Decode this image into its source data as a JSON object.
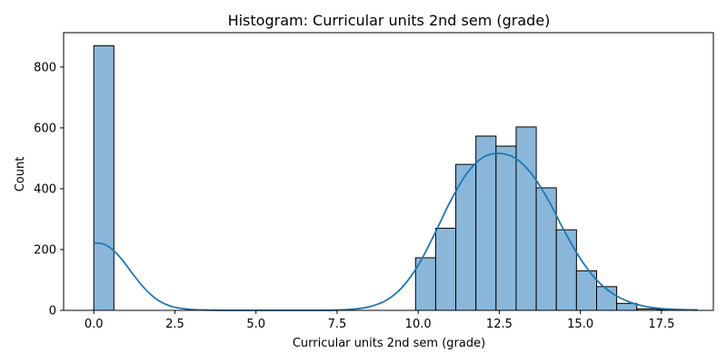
{
  "chart_data": {
    "type": "bar",
    "title": "Histogram: Curricular units 2nd sem (grade)",
    "xlabel": "Curricular units 2nd sem (grade)",
    "ylabel": "Count",
    "xlim": [
      -0.93,
      19.1
    ],
    "ylim": [
      0,
      913
    ],
    "x_ticks": [
      0,
      2.5,
      5,
      7.5,
      10,
      12.5,
      15,
      17.5
    ],
    "x_tick_labels": [
      "0.0",
      "2.5",
      "5.0",
      "7.5",
      "10.0",
      "12.5",
      "15.0",
      "17.5"
    ],
    "y_ticks": [
      0,
      200,
      400,
      600,
      800
    ],
    "y_tick_labels": [
      "0",
      "200",
      "400",
      "600",
      "800"
    ],
    "grid": false,
    "bins": [
      {
        "x0": 0.0,
        "x1": 0.62,
        "count": 870
      },
      {
        "x0": 9.92,
        "x1": 10.54,
        "count": 173
      },
      {
        "x0": 10.54,
        "x1": 11.16,
        "count": 270
      },
      {
        "x0": 11.16,
        "x1": 11.78,
        "count": 480
      },
      {
        "x0": 11.78,
        "x1": 12.4,
        "count": 573
      },
      {
        "x0": 12.4,
        "x1": 13.02,
        "count": 540
      },
      {
        "x0": 13.02,
        "x1": 13.64,
        "count": 603
      },
      {
        "x0": 13.64,
        "x1": 14.26,
        "count": 403
      },
      {
        "x0": 14.26,
        "x1": 14.88,
        "count": 265
      },
      {
        "x0": 14.88,
        "x1": 15.5,
        "count": 130
      },
      {
        "x0": 15.5,
        "x1": 16.12,
        "count": 78
      },
      {
        "x0": 16.12,
        "x1": 16.74,
        "count": 23
      },
      {
        "x0": 16.74,
        "x1": 17.36,
        "count": 5
      },
      {
        "x0": 17.36,
        "x1": 17.98,
        "count": 3
      },
      {
        "x0": 17.98,
        "x1": 18.6,
        "count": 2
      }
    ],
    "kde": [
      [
        0.0,
        222
      ],
      [
        0.3,
        218
      ],
      [
        0.6,
        198
      ],
      [
        0.9,
        163
      ],
      [
        1.2,
        120
      ],
      [
        1.5,
        80
      ],
      [
        1.8,
        48
      ],
      [
        2.1,
        26
      ],
      [
        2.5,
        10
      ],
      [
        3.0,
        3
      ],
      [
        3.5,
        1
      ],
      [
        4.0,
        0
      ],
      [
        5.0,
        0
      ],
      [
        6.0,
        0
      ],
      [
        7.0,
        0
      ],
      [
        7.5,
        1
      ],
      [
        8.0,
        4
      ],
      [
        8.5,
        12
      ],
      [
        9.0,
        32
      ],
      [
        9.5,
        75
      ],
      [
        10.0,
        148
      ],
      [
        10.5,
        250
      ],
      [
        11.0,
        360
      ],
      [
        11.5,
        450
      ],
      [
        12.0,
        503
      ],
      [
        12.5,
        516
      ],
      [
        13.0,
        500
      ],
      [
        13.5,
        448
      ],
      [
        14.0,
        365
      ],
      [
        14.5,
        262
      ],
      [
        15.0,
        170
      ],
      [
        15.5,
        100
      ],
      [
        16.0,
        55
      ],
      [
        16.5,
        28
      ],
      [
        17.0,
        13
      ],
      [
        17.5,
        6
      ],
      [
        18.0,
        3
      ],
      [
        18.6,
        1
      ]
    ],
    "colors": {
      "bar_fill": "#8ab7d9",
      "bar_edge": "#000000",
      "kde_line": "#1f77b4"
    }
  }
}
